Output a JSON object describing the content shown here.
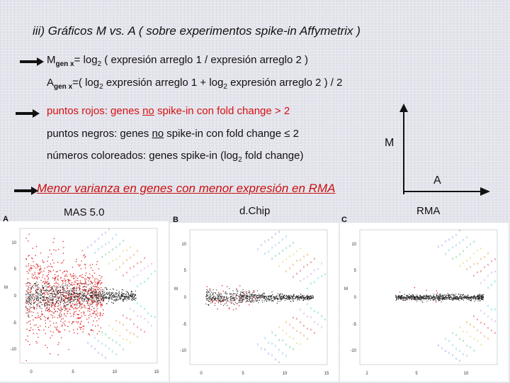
{
  "title": "iii) Gráficos M vs. A ( sobre experimentos spike-in Affymetrix )",
  "def_m": {
    "m": "M",
    "sub": "gen x",
    "mid": "= log",
    "sub2": "2",
    "rest": " ( expresión arreglo 1 / expresión arreglo 2 )"
  },
  "def_a": {
    "a": "A",
    "sub": "gen x",
    "mid": "=( log",
    "sub2": "2",
    "mid2": " expresión arreglo 1 + log",
    "sub3": "2",
    "rest": " expresión arreglo 2 ) / 2"
  },
  "legend_red": "puntos rojos: genes no spike-in con fold change > 2",
  "legend_black": {
    "pre": "puntos negros: genes ",
    "no": "no",
    "post": " spike-in con fold change ≤ 2"
  },
  "legend_red_parts": {
    "pre": "puntos rojos: genes ",
    "no": "no",
    "post": " spike-in con fold change > 2"
  },
  "legend_colored": {
    "pre": "números coloreados: genes spike-in (log",
    "sub": "2",
    "post": " fold change)"
  },
  "note": "Menor varianza en genes con menor expresión en RMA",
  "axis": {
    "m": "M",
    "a": "A"
  },
  "methods": [
    "MAS 5.0",
    "d.Chip",
    "RMA"
  ],
  "panels": [
    {
      "letter": "A",
      "yticks": [
        "10",
        "5",
        "0",
        "-5",
        "-10"
      ],
      "xticks": [
        "0",
        "5",
        "10",
        "15"
      ]
    },
    {
      "letter": "B",
      "yticks": [
        "10",
        "5",
        "0",
        "-5",
        "-10"
      ],
      "xticks": [
        "0",
        "5",
        "10",
        "15"
      ]
    },
    {
      "letter": "C",
      "yticks": [
        "10",
        "5",
        "0",
        "-5",
        "-10"
      ],
      "xticks": [
        "2",
        "5",
        "10"
      ]
    }
  ],
  "colors": {
    "red": "#d61010",
    "arrow": "#111111"
  },
  "icons": [
    "arrow-right-icon"
  ]
}
